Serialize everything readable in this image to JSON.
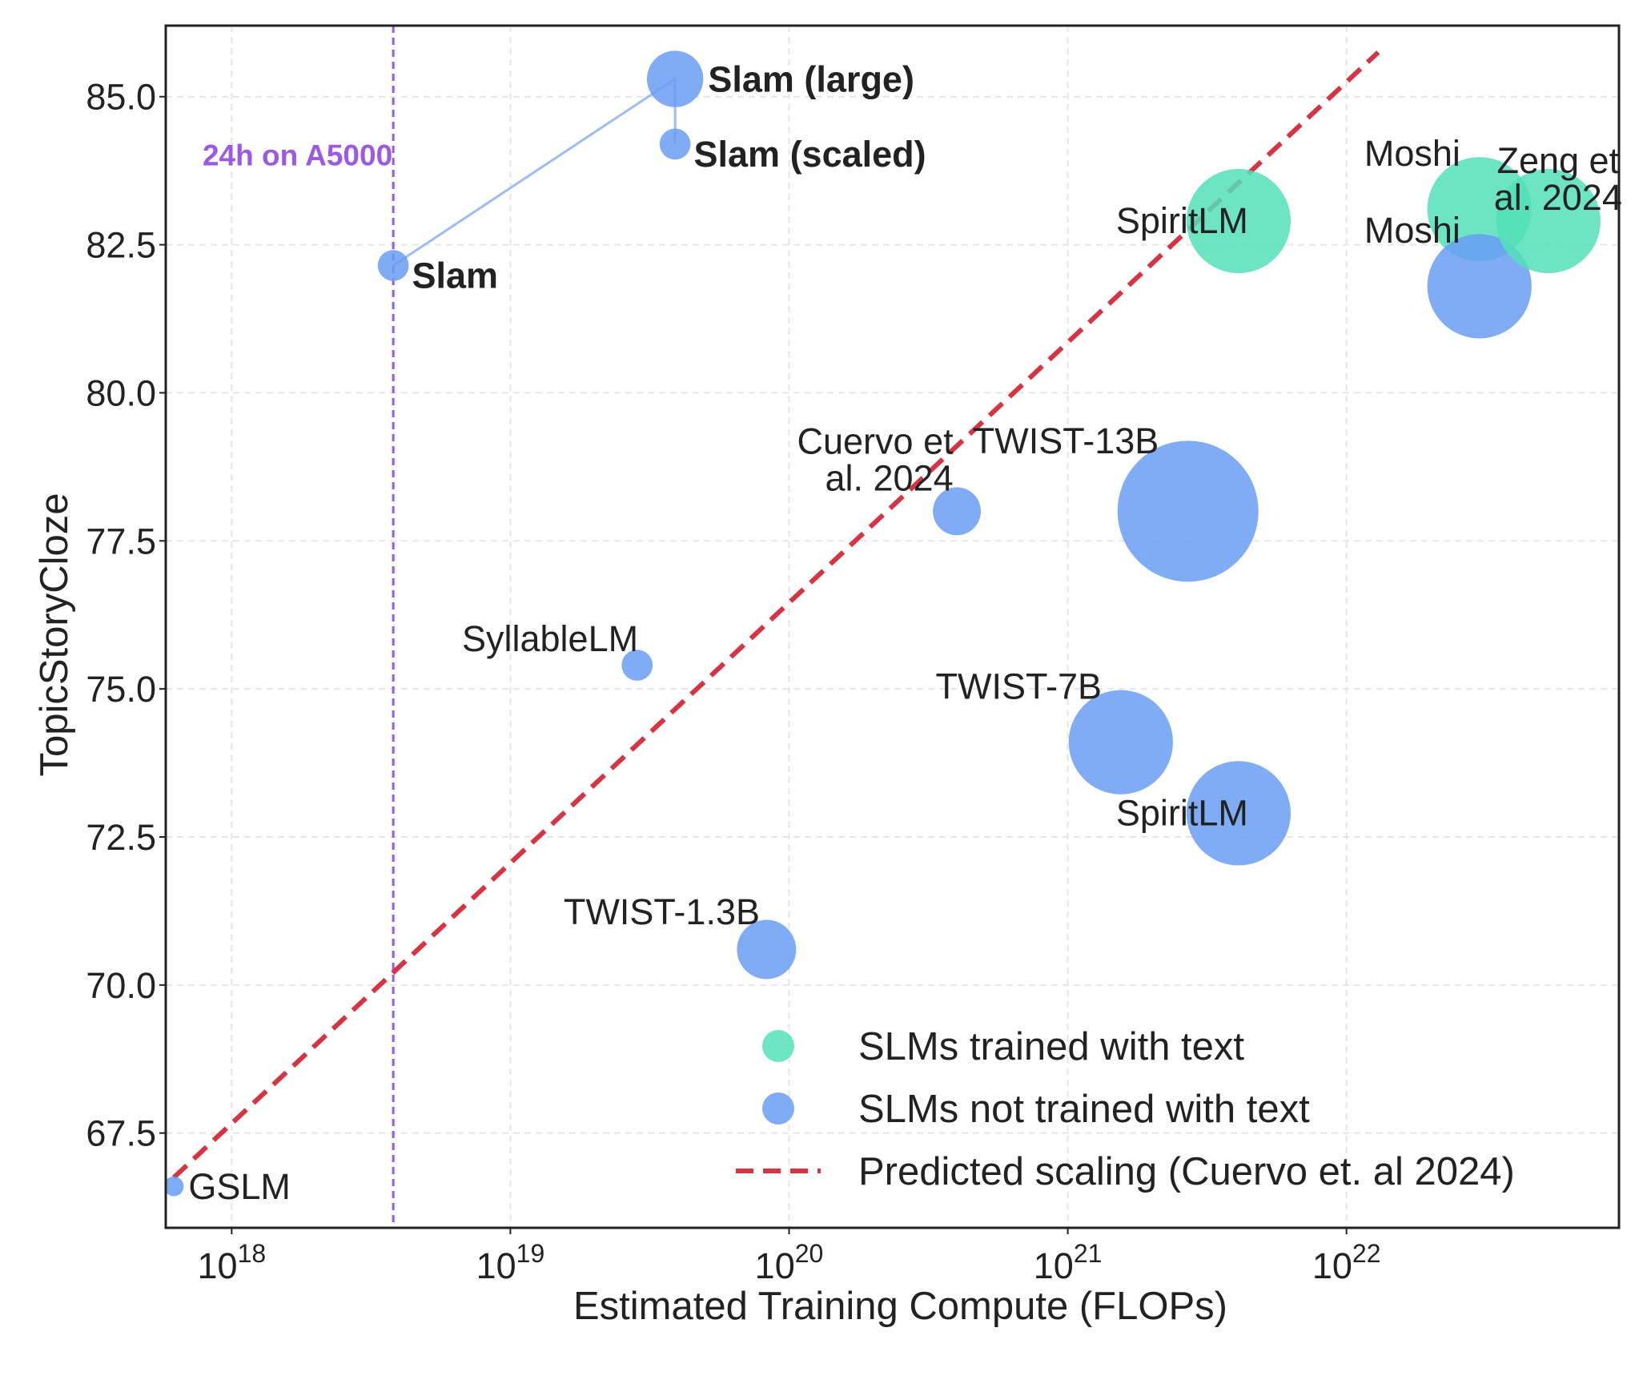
{
  "chart_data": {
    "type": "scatter",
    "xscale": "log",
    "xlabel": "Estimated Training Compute (FLOPs)",
    "ylabel": "TopicStoryCloze",
    "xlim": [
      5.8e+17,
      9.5e+22
    ],
    "ylim": [
      65.9,
      86.2
    ],
    "x_tick_exponents": [
      18,
      19,
      20,
      21,
      22
    ],
    "x_tick_base": "10",
    "y_ticks": [
      "67.5",
      "70.0",
      "72.5",
      "75.0",
      "77.5",
      "80.0",
      "82.5",
      "85.0"
    ],
    "grid": true,
    "colors": {
      "with_text": "#54e0b9",
      "without_text": "#6a9ef5",
      "prediction": "#d63443",
      "annotation": "#9b59e6",
      "slam_line": "#9bbcf5",
      "axis": "#222222",
      "grid": "#e6e6e6"
    },
    "points": [
      {
        "label": "GSLM",
        "x": 6.2e+17,
        "y": 66.6,
        "size_rel": 0.14,
        "group": "without_text",
        "bold": false,
        "label_pos": "right"
      },
      {
        "label": "Slam",
        "x": 3.8e+18,
        "y": 82.15,
        "size_rel": 0.22,
        "group": "without_text",
        "bold": true,
        "label_pos": "right-below"
      },
      {
        "label": "Slam (large)",
        "x": 3.9e+19,
        "y": 85.3,
        "size_rel": 0.4,
        "group": "without_text",
        "bold": true,
        "label_pos": "right"
      },
      {
        "label": "Slam (scaled)",
        "x": 3.9e+19,
        "y": 84.2,
        "size_rel": 0.22,
        "group": "without_text",
        "bold": true,
        "label_pos": "right-below"
      },
      {
        "label": "SyllableLM",
        "x": 2.85e+19,
        "y": 75.4,
        "size_rel": 0.22,
        "group": "without_text",
        "bold": false,
        "label_pos": "left-above"
      },
      {
        "label": "TWIST-1.3B",
        "x": 8.3e+19,
        "y": 70.6,
        "size_rel": 0.42,
        "group": "without_text",
        "bold": false,
        "label_pos": "left-above"
      },
      {
        "label": "Cuervo et\nal. 2024",
        "x": 4e+20,
        "y": 78.0,
        "size_rel": 0.34,
        "group": "without_text",
        "bold": false,
        "label_pos": "left-above"
      },
      {
        "label": "TWIST-13B",
        "x": 2.7e+21,
        "y": 78.0,
        "size_rel": 1.0,
        "group": "without_text",
        "bold": false,
        "label_pos": "left-above"
      },
      {
        "label": "TWIST-7B",
        "x": 1.55e+21,
        "y": 74.1,
        "size_rel": 0.74,
        "group": "without_text",
        "bold": false,
        "label_pos": "left-above"
      },
      {
        "label": "SpiritLM",
        "x": 4.1e+21,
        "y": 72.9,
        "size_rel": 0.74,
        "group": "without_text",
        "bold": false,
        "label_pos": "left"
      },
      {
        "label": "SpiritLM",
        "x": 4.1e+21,
        "y": 82.9,
        "size_rel": 0.74,
        "group": "with_text",
        "bold": false,
        "label_pos": "left"
      },
      {
        "label": "Moshi",
        "x": 3e+22,
        "y": 83.1,
        "size_rel": 0.74,
        "group": "with_text",
        "bold": false,
        "label_pos": "left-above"
      },
      {
        "label": "Moshi",
        "x": 3e+22,
        "y": 81.8,
        "size_rel": 0.74,
        "group": "without_text",
        "bold": false,
        "label_pos": "left-above"
      },
      {
        "label": "Zeng et\nal. 2024",
        "x": 5.3e+22,
        "y": 82.9,
        "size_rel": 0.74,
        "group": "with_text",
        "bold": false,
        "label_pos": "center"
      }
    ],
    "slam_path": [
      {
        "x": 3.8e+18,
        "y": 82.15
      },
      {
        "x": 3.9e+19,
        "y": 85.3
      },
      {
        "x": 3.9e+19,
        "y": 84.2
      }
    ],
    "prediction_line": {
      "x": [
        6.2e+17,
        1.3e+22
      ],
      "y": [
        66.75,
        85.75
      ]
    },
    "vline": {
      "x": 3.8e+18,
      "label": "24h on A5000"
    },
    "legend": {
      "placement": "bottom-right",
      "entries": [
        {
          "label": "SLMs trained with text",
          "kind": "marker",
          "group": "with_text"
        },
        {
          "label": "SLMs not trained with text",
          "kind": "marker",
          "group": "without_text"
        },
        {
          "label": "Predicted scaling (Cuervo et. al 2024)",
          "kind": "dashed"
        }
      ]
    }
  }
}
